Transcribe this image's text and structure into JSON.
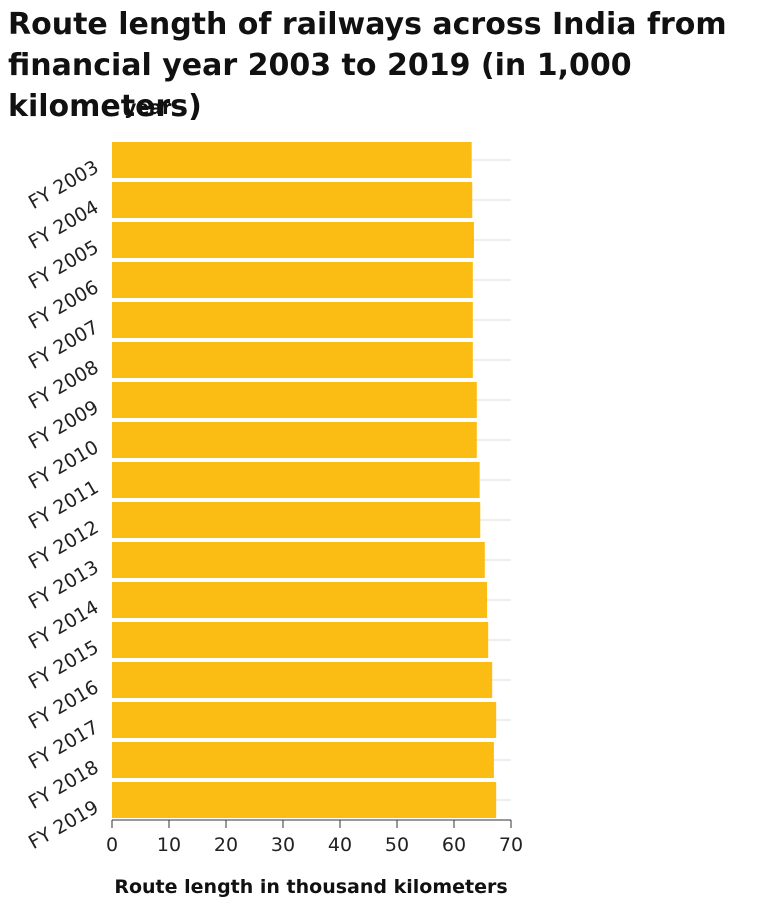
{
  "chart_data": {
    "type": "bar",
    "orientation": "horizontal",
    "title": "Route length of railways across India from financial year 2003 to 2019 (in 1,000 kilometers)",
    "xlabel": "Route length in thousand kilometers",
    "ylabel": "year",
    "categories": [
      "FY 2003",
      "FY 2004",
      "FY 2005",
      "FY 2006",
      "FY 2007",
      "FY 2008",
      "FY 2009",
      "FY 2010",
      "FY 2011",
      "FY 2012",
      "FY 2013",
      "FY 2014",
      "FY 2015",
      "FY 2016",
      "FY 2017",
      "FY 2018",
      "FY 2019"
    ],
    "values": [
      63.1,
      63.2,
      63.5,
      63.3,
      63.3,
      63.3,
      64.0,
      64.0,
      64.5,
      64.6,
      65.4,
      65.8,
      66.0,
      66.7,
      67.4,
      67.0,
      67.4
    ],
    "x_ticks": [
      0,
      10,
      20,
      30,
      40,
      50,
      60,
      70
    ],
    "xlim": [
      0,
      70
    ],
    "grid": "horizontal",
    "legend": "none",
    "colors": {
      "bar": "#fbbc13",
      "grid": "#dddddd",
      "axis": "#333333"
    }
  }
}
